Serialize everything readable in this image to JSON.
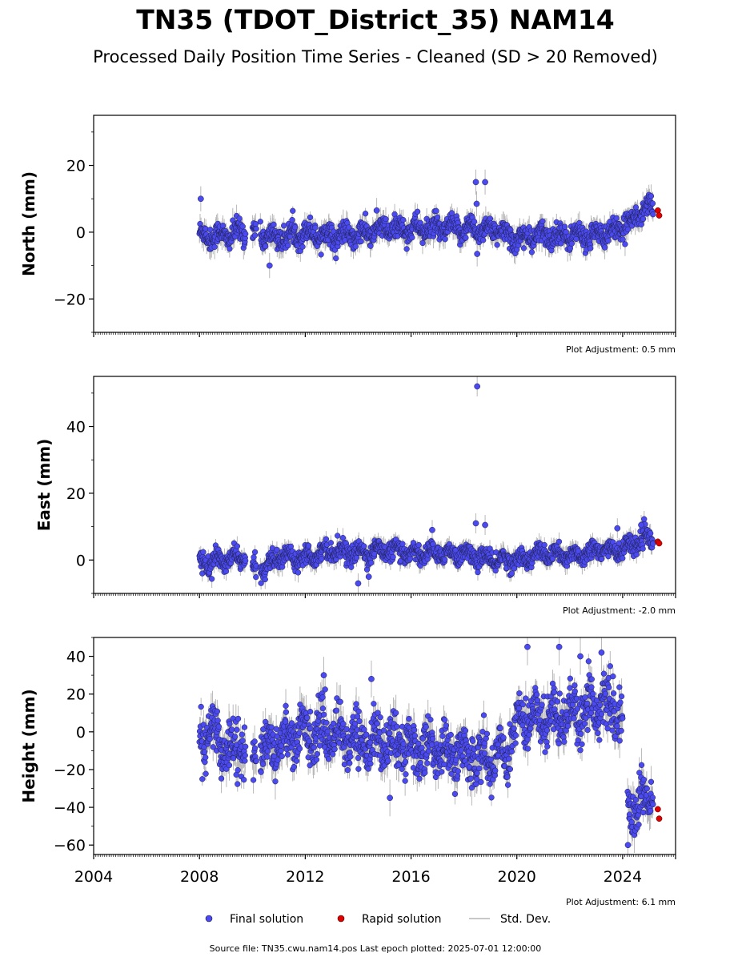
{
  "title": "TN35 (TDOT_District_35) NAM14",
  "subtitle": "Processed Daily Position Time Series - Cleaned (SD > 20 Removed)",
  "legend": {
    "final": "Final solution",
    "rapid": "Rapid solution",
    "std": "Std. Dev."
  },
  "footer": "Source file: TN35.cwu.nam14.pos  Last epoch plotted: 2025-07-01 12:00:00",
  "colors": {
    "final": "#4a4af0",
    "rapid": "#e00000",
    "std": "#b8b8b8"
  },
  "chart_data": [
    {
      "type": "scatter",
      "ylabel": "North (mm)",
      "note": "Plot Adjustment: 0.5 mm",
      "xlim": [
        2004,
        2026
      ],
      "ylim": [
        -30,
        35
      ],
      "yticks": [
        -20,
        0,
        20
      ],
      "x_ticks": [
        2004,
        2008,
        2012,
        2016,
        2020,
        2024
      ],
      "series": [
        {
          "name": "Final solution",
          "approx_mean": {
            "x": [
              2008.0,
              2009.0,
              2009.6,
              2010.0,
              2011.0,
              2012.0,
              2013.0,
              2014.0,
              2015.0,
              2016.0,
              2017.0,
              2018.0,
              2019.0,
              2020.0,
              2021.0,
              2022.0,
              2023.0,
              2024.0,
              2024.5,
              2025.0
            ],
            "y": [
              -1,
              -1,
              0,
              0,
              -2,
              0,
              -1,
              -1,
              1,
              1,
              1,
              1,
              1,
              -2,
              -1,
              -1,
              -1,
              1,
              5,
              8
            ]
          },
          "outliers": [
            {
              "x": 2008.05,
              "y": 10
            },
            {
              "x": 2010.65,
              "y": -10
            },
            {
              "x": 2018.45,
              "y": 15
            },
            {
              "x": 2018.48,
              "y": 8.5
            },
            {
              "x": 2018.8,
              "y": 15
            },
            {
              "x": 2018.5,
              "y": -6.5
            },
            {
              "x": 2014.7,
              "y": 6.5
            }
          ]
        },
        {
          "name": "Rapid solution",
          "points": [
            {
              "x": 2025.33,
              "y": 6.5
            },
            {
              "x": 2025.38,
              "y": 5
            }
          ]
        }
      ]
    },
    {
      "type": "scatter",
      "ylabel": "East (mm)",
      "note": "Plot Adjustment: -2.0 mm",
      "xlim": [
        2004,
        2026
      ],
      "ylim": [
        -10,
        55
      ],
      "yticks": [
        0,
        20,
        40
      ],
      "x_ticks": [
        2004,
        2008,
        2012,
        2016,
        2020,
        2024
      ],
      "series": [
        {
          "name": "Final solution",
          "approx_mean": {
            "x": [
              2008.0,
              2009.0,
              2009.7,
              2010.0,
              2010.5,
              2011.0,
              2012.0,
              2013.0,
              2014.0,
              2015.0,
              2016.0,
              2017.0,
              2018.0,
              2019.0,
              2020.0,
              2021.0,
              2022.0,
              2023.0,
              2024.0,
              2024.6,
              2025.0
            ],
            "y": [
              -1,
              0,
              1,
              -3,
              -2,
              1,
              1,
              3,
              2,
              3,
              2,
              2,
              2,
              0,
              0,
              2,
              1,
              3,
              3,
              6,
              6
            ]
          },
          "outliers": [
            {
              "x": 2018.5,
              "y": 52
            },
            {
              "x": 2018.45,
              "y": 11
            },
            {
              "x": 2018.8,
              "y": 10.5
            },
            {
              "x": 2014.0,
              "y": -7
            },
            {
              "x": 2014.4,
              "y": -5
            },
            {
              "x": 2016.8,
              "y": 9
            },
            {
              "x": 2023.8,
              "y": 9.5
            },
            {
              "x": 2024.7,
              "y": 10.5
            }
          ]
        },
        {
          "name": "Rapid solution",
          "points": [
            {
              "x": 2025.33,
              "y": 5.5
            },
            {
              "x": 2025.38,
              "y": 5
            }
          ]
        }
      ]
    },
    {
      "type": "scatter",
      "ylabel": "Height (mm)",
      "note": "Plot Adjustment: 6.1 mm",
      "xlim": [
        2004,
        2026
      ],
      "ylim": [
        -65,
        50
      ],
      "yticks": [
        -60,
        -40,
        -20,
        0,
        20,
        40
      ],
      "x_ticks": [
        2004,
        2008,
        2012,
        2016,
        2020,
        2024
      ],
      "x_tick_labels": [
        "2004",
        "2008",
        "2012",
        "2016",
        "2020",
        "2024"
      ],
      "series": [
        {
          "name": "Final solution",
          "approx_mean": {
            "x": [
              2008.0,
              2008.5,
              2009.0,
              2009.5,
              2010.0,
              2010.5,
              2011.0,
              2012.0,
              2013.0,
              2014.0,
              2015.0,
              2016.0,
              2017.0,
              2018.0,
              2019.0,
              2019.6,
              2020.0,
              2021.0,
              2022.0,
              2023.0,
              2024.0,
              2024.2,
              2024.5,
              2025.0
            ],
            "y": [
              -5,
              0,
              -10,
              -5,
              -15,
              -8,
              -5,
              0,
              0,
              -5,
              -5,
              -8,
              -10,
              -12,
              -15,
              -10,
              5,
              8,
              10,
              15,
              10,
              -45,
              -40,
              -35
            ]
          },
          "outliers": [
            {
              "x": 2012.7,
              "y": 30
            },
            {
              "x": 2014.5,
              "y": 28
            },
            {
              "x": 2020.4,
              "y": 45
            },
            {
              "x": 2021.6,
              "y": 45
            },
            {
              "x": 2022.4,
              "y": 40
            },
            {
              "x": 2023.2,
              "y": 42
            },
            {
              "x": 2024.2,
              "y": -60
            },
            {
              "x": 2015.2,
              "y": -35
            }
          ]
        },
        {
          "name": "Rapid solution",
          "points": [
            {
              "x": 2025.33,
              "y": -41
            },
            {
              "x": 2025.38,
              "y": -46
            }
          ]
        }
      ]
    }
  ]
}
